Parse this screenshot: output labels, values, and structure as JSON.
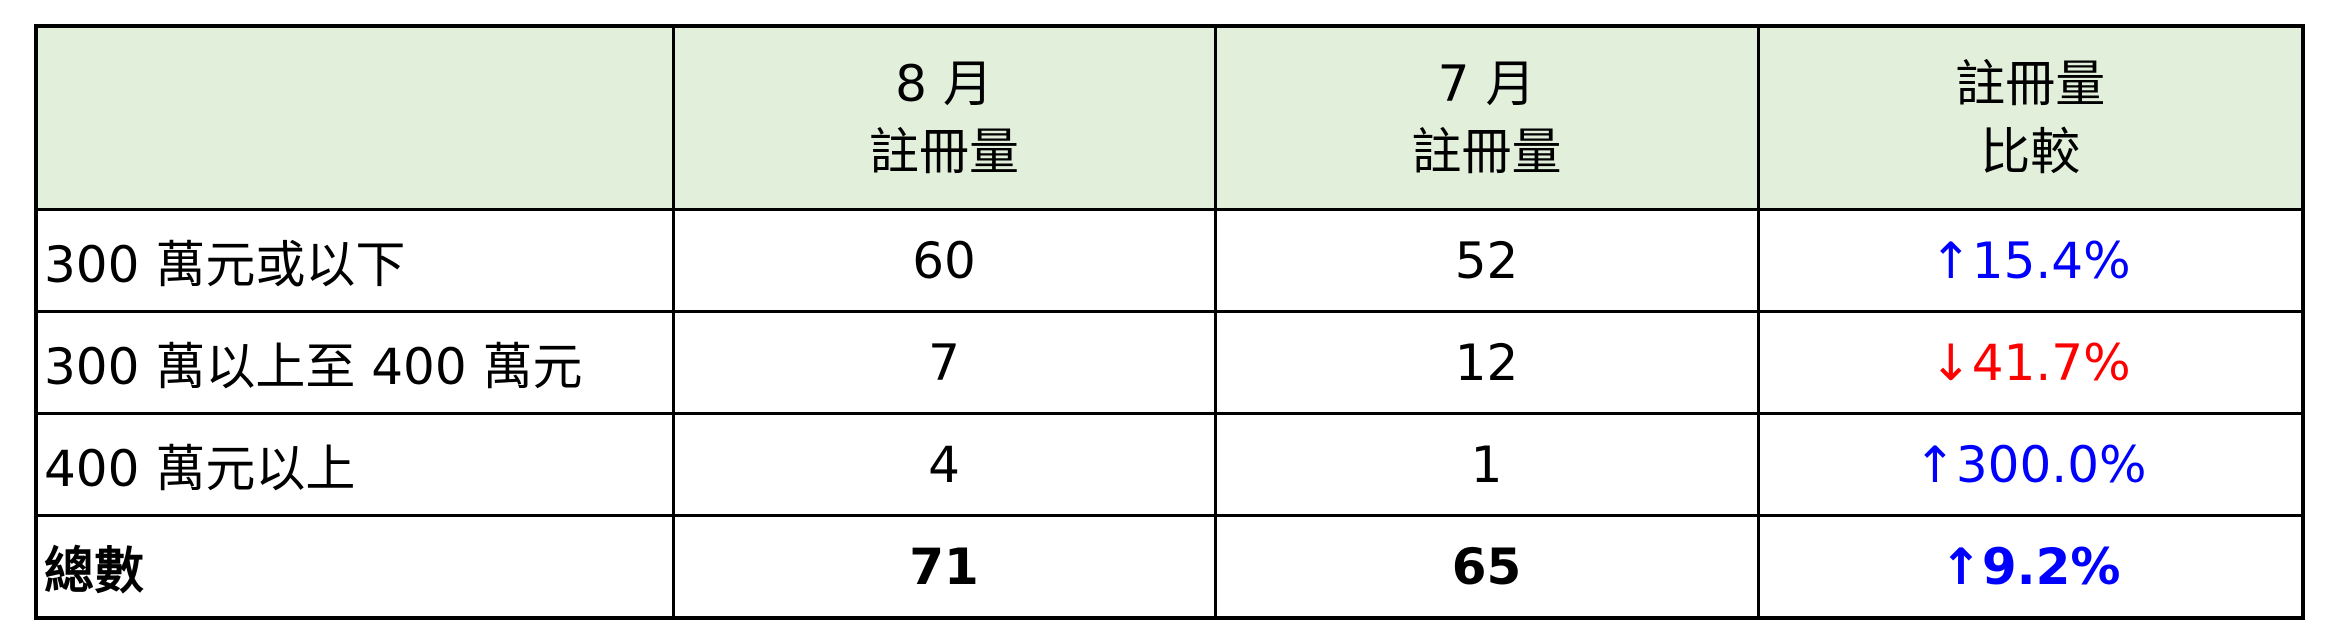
{
  "colors": {
    "header_bg": "#e2efda",
    "increase": "#0000ff",
    "decrease": "#ff0000"
  },
  "header": {
    "col1": {
      "line1": "8 月",
      "line2": "註冊量"
    },
    "col2": {
      "line1": "7 月",
      "line2": "註冊量"
    },
    "col3": {
      "line1": "註冊量",
      "line2": "比較"
    }
  },
  "rows": [
    {
      "label": "300 萬元或以下",
      "aug": "60",
      "jul": "52",
      "change": "↑15.4%",
      "direction": "up"
    },
    {
      "label": "300 萬以上至 400 萬元",
      "aug": "7",
      "jul": "12",
      "change": "↓41.7%",
      "direction": "down"
    },
    {
      "label": "400 萬元以上",
      "aug": "4",
      "jul": "1",
      "change": "↑300.0%",
      "direction": "up"
    }
  ],
  "total": {
    "label": "總數",
    "aug": "71",
    "jul": "65",
    "change": "↑9.2%",
    "direction": "up"
  }
}
